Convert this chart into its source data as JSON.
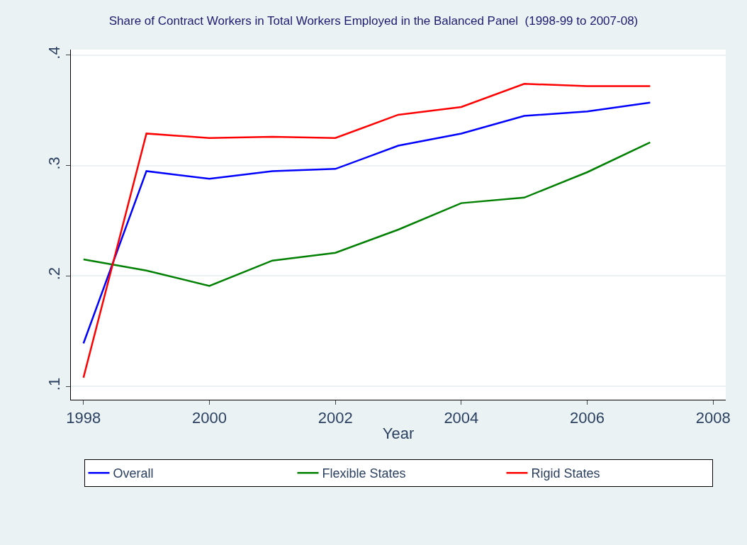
{
  "chart_data": {
    "type": "line",
    "title": "Share of Contract Workers in Total Workers Employed in the Balanced Panel  (1998-99 to 2007-08)",
    "xlabel": "Year",
    "x": [
      1998,
      1999,
      2000,
      2001,
      2002,
      2003,
      2004,
      2005,
      2006,
      2007
    ],
    "series": [
      {
        "name": "Overall",
        "color": "#0000ff",
        "values": [
          0.139,
          0.295,
          0.288,
          0.295,
          0.297,
          0.318,
          0.329,
          0.345,
          0.349,
          0.357
        ]
      },
      {
        "name": "Flexible States",
        "color": "#008000",
        "values": [
          0.215,
          0.205,
          0.191,
          0.214,
          0.221,
          0.242,
          0.266,
          0.271,
          0.294,
          0.321
        ]
      },
      {
        "name": "Rigid States",
        "color": "#ff0000",
        "values": [
          0.108,
          0.329,
          0.325,
          0.326,
          0.325,
          0.346,
          0.353,
          0.374,
          0.372,
          0.372
        ]
      }
    ],
    "xlim": [
      1997.8,
      2008.2
    ],
    "xticks": [
      1998,
      2000,
      2002,
      2004,
      2006,
      2008
    ],
    "ylim": [
      0.088,
      0.405
    ],
    "yticks": [
      {
        "value": 0.1,
        "label": ".1"
      },
      {
        "value": 0.2,
        "label": ".2"
      },
      {
        "value": 0.3,
        "label": ".3"
      },
      {
        "value": 0.4,
        "label": ".4"
      }
    ],
    "grid": "y",
    "legend": "bottom",
    "marker": "none",
    "line_style": "solid"
  }
}
